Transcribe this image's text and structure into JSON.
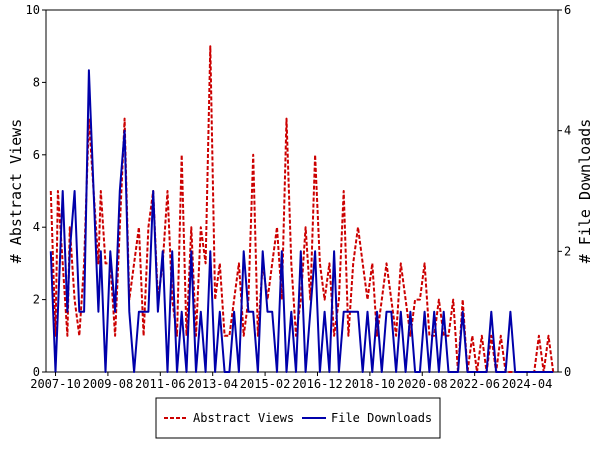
{
  "chart_data": {
    "type": "line",
    "title": "",
    "xlabel": "",
    "x_tick_labels": [
      "2007-10",
      "2009-08",
      "2011-06",
      "2013-04",
      "2015-02",
      "2016-12",
      "2018-10",
      "2020-08",
      "2022-06",
      "2024-04"
    ],
    "x_range": [
      "2007-06",
      "2025-05"
    ],
    "ylabel_left": "# Abstract Views",
    "ylabel_right": "# File Downloads",
    "ylim_left": [
      0,
      10
    ],
    "ylim_right": [
      0,
      6
    ],
    "y_ticks_left": [
      "0",
      "2",
      "4",
      "6",
      "8",
      "10"
    ],
    "y_ticks_right": [
      "0",
      "2",
      "4",
      "6"
    ],
    "grid": false,
    "legend_position": "bottom-center",
    "colors": {
      "abstract_views": "#cc0000",
      "file_downloads": "#0000aa"
    },
    "series": [
      {
        "name": "Abstract Views",
        "axis": "left",
        "style": "dashed",
        "x": [
          "2007-08",
          "2007-10",
          "2007-11",
          "2008-01",
          "2008-03",
          "2008-04",
          "2008-06",
          "2008-08",
          "2008-10",
          "2008-12",
          "2009-02",
          "2009-04",
          "2009-05",
          "2009-07",
          "2009-09",
          "2009-11",
          "2010-01",
          "2010-03",
          "2010-05",
          "2010-07",
          "2010-09",
          "2010-11",
          "2011-01",
          "2011-03",
          "2011-05",
          "2011-07",
          "2011-09",
          "2011-11",
          "2012-01",
          "2012-03",
          "2012-05",
          "2012-07",
          "2012-09",
          "2012-11",
          "2013-01",
          "2013-03",
          "2013-05",
          "2013-07",
          "2013-09",
          "2013-11",
          "2014-01",
          "2014-03",
          "2014-05",
          "2014-07",
          "2014-09",
          "2014-11",
          "2015-01",
          "2015-03",
          "2015-05",
          "2015-07",
          "2015-09",
          "2015-11",
          "2016-01",
          "2016-03",
          "2016-05",
          "2016-07",
          "2016-09",
          "2016-11",
          "2017-01",
          "2017-03",
          "2017-05",
          "2017-07",
          "2017-09",
          "2017-11",
          "2018-01",
          "2018-03",
          "2018-05",
          "2018-07",
          "2018-09",
          "2018-11",
          "2019-01",
          "2019-03",
          "2019-05",
          "2019-07",
          "2019-09",
          "2019-11",
          "2020-01",
          "2020-03",
          "2020-05",
          "2020-07",
          "2020-09",
          "2020-11",
          "2021-01",
          "2021-03",
          "2021-05",
          "2021-07",
          "2021-09",
          "2021-11",
          "2022-01",
          "2022-03",
          "2022-05",
          "2022-07",
          "2022-09",
          "2022-11",
          "2023-01",
          "2023-03",
          "2023-05",
          "2023-07",
          "2023-09",
          "2023-11",
          "2024-01",
          "2024-03",
          "2024-05",
          "2024-07",
          "2024-09",
          "2024-11",
          "2025-01",
          "2025-03"
        ],
        "values": [
          5,
          1,
          5,
          3,
          1,
          4,
          2,
          1,
          3,
          7,
          5,
          3,
          5,
          3,
          3,
          1,
          4,
          7,
          2,
          3,
          4,
          1,
          4,
          5,
          2,
          3,
          5,
          2,
          1,
          6,
          1,
          4,
          1,
          4,
          3,
          9,
          2,
          3,
          1,
          1,
          2,
          3,
          1,
          2,
          6,
          1,
          3,
          2,
          3,
          4,
          2,
          7,
          3,
          1,
          2,
          4,
          2,
          6,
          3,
          2,
          3,
          1,
          2,
          5,
          1,
          3,
          4,
          3,
          2,
          3,
          1,
          2,
          3,
          2,
          1,
          3,
          2,
          1,
          2,
          2,
          3,
          1,
          1,
          2,
          1,
          1,
          2,
          0,
          2,
          0,
          1,
          0,
          1,
          0,
          1,
          0,
          1,
          0,
          0,
          0,
          0,
          0,
          0,
          0,
          1,
          0,
          1,
          0
        ]
      },
      {
        "name": "File Downloads",
        "axis": "right",
        "style": "solid",
        "x": [
          "2007-08",
          "2007-10",
          "2007-11",
          "2008-01",
          "2008-03",
          "2008-04",
          "2008-06",
          "2008-08",
          "2008-10",
          "2008-12",
          "2009-02",
          "2009-04",
          "2009-05",
          "2009-07",
          "2009-09",
          "2009-11",
          "2010-01",
          "2010-03",
          "2010-05",
          "2010-07",
          "2010-09",
          "2010-11",
          "2011-01",
          "2011-03",
          "2011-05",
          "2011-07",
          "2011-09",
          "2011-11",
          "2012-01",
          "2012-03",
          "2012-05",
          "2012-07",
          "2012-09",
          "2012-11",
          "2013-01",
          "2013-03",
          "2013-05",
          "2013-07",
          "2013-09",
          "2013-11",
          "2014-01",
          "2014-03",
          "2014-05",
          "2014-07",
          "2014-09",
          "2014-11",
          "2015-01",
          "2015-03",
          "2015-05",
          "2015-07",
          "2015-09",
          "2015-11",
          "2016-01",
          "2016-03",
          "2016-05",
          "2016-07",
          "2016-09",
          "2016-11",
          "2017-01",
          "2017-03",
          "2017-05",
          "2017-07",
          "2017-09",
          "2017-11",
          "2018-01",
          "2018-03",
          "2018-05",
          "2018-07",
          "2018-09",
          "2018-11",
          "2019-01",
          "2019-03",
          "2019-05",
          "2019-07",
          "2019-09",
          "2019-11",
          "2020-01",
          "2020-03",
          "2020-05",
          "2020-07",
          "2020-09",
          "2020-11",
          "2021-01",
          "2021-03",
          "2021-05",
          "2021-07",
          "2021-09",
          "2021-11",
          "2022-01",
          "2022-03",
          "2022-05",
          "2022-07",
          "2022-09",
          "2022-11",
          "2023-01",
          "2023-03",
          "2023-05",
          "2023-07",
          "2023-09",
          "2023-11",
          "2024-01",
          "2024-03",
          "2024-05",
          "2024-07",
          "2024-09",
          "2024-11",
          "2025-01",
          "2025-03"
        ],
        "values": [
          2,
          0,
          1,
          3,
          1,
          2,
          3,
          1,
          1,
          5,
          3,
          1,
          2,
          0,
          2,
          1,
          3,
          4,
          1,
          0,
          1,
          1,
          1,
          3,
          1,
          2,
          0,
          2,
          0,
          1,
          0,
          2,
          0,
          1,
          0,
          2,
          0,
          1,
          0,
          0,
          1,
          0,
          2,
          1,
          1,
          0,
          2,
          1,
          1,
          0,
          2,
          0,
          1,
          0,
          2,
          0,
          1,
          2,
          0,
          1,
          0,
          2,
          0,
          1,
          1,
          1,
          1,
          0,
          1,
          0,
          1,
          0,
          1,
          1,
          0,
          1,
          0,
          1,
          0,
          0,
          1,
          0,
          1,
          0,
          1,
          0,
          0,
          0,
          1,
          0,
          0,
          0,
          0,
          0,
          1,
          0,
          0,
          0,
          1,
          0,
          0,
          0,
          0,
          0,
          0,
          0,
          0,
          0
        ]
      }
    ]
  }
}
